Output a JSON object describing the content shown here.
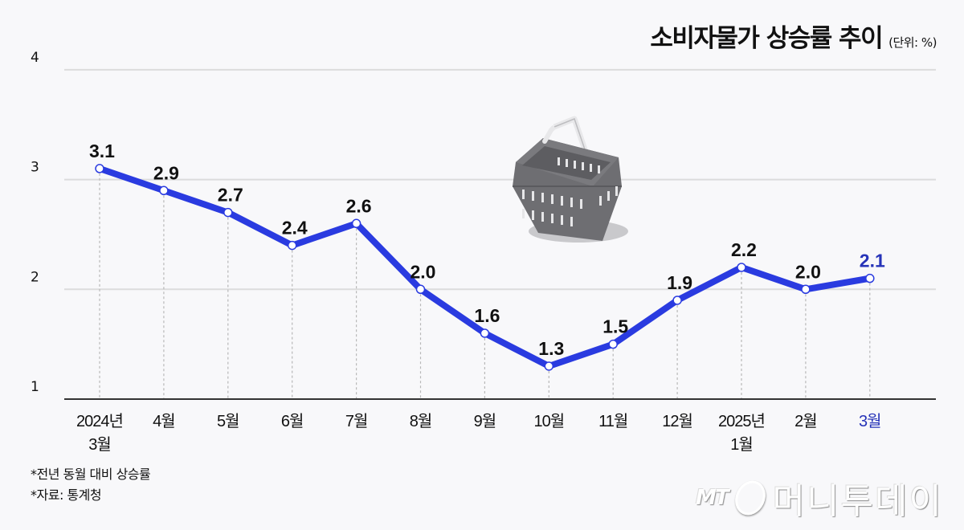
{
  "header": {
    "title": "소비자물가 상승률 추이",
    "unit": "(단위: %)"
  },
  "notes": [
    "*전년 동월 대비 상승률",
    "*자료: 통계청"
  ],
  "logo": {
    "mt": "MT",
    "name": "머니투데이"
  },
  "colors": {
    "line": "#2a3be0",
    "highlight_label": "#2633b8",
    "text": "#111111",
    "grid": "#dcdcdc",
    "axis": "#333333",
    "background": "#f8f8fa"
  },
  "chart_data": {
    "type": "line",
    "title": "소비자물가 상승률 추이",
    "subtitle": "(단위: %)",
    "xlabel": "",
    "ylabel": "%",
    "ylim": [
      1,
      4
    ],
    "yticks": [
      1,
      2,
      3,
      4
    ],
    "grid": true,
    "legend": null,
    "categories": [
      "2024년 3월",
      "4월",
      "5월",
      "6월",
      "7월",
      "8월",
      "9월",
      "10월",
      "11월",
      "12월",
      "2025년 1월",
      "2월",
      "3월"
    ],
    "category_lines": [
      [
        "2024년",
        "3월"
      ],
      [
        "4월"
      ],
      [
        "5월"
      ],
      [
        "6월"
      ],
      [
        "7월"
      ],
      [
        "8월"
      ],
      [
        "9월"
      ],
      [
        "10월"
      ],
      [
        "11월"
      ],
      [
        "12월"
      ],
      [
        "2025년",
        "1월"
      ],
      [
        "2월"
      ],
      [
        "3월"
      ]
    ],
    "series": [
      {
        "name": "소비자물가 상승률",
        "values": [
          3.1,
          2.9,
          2.7,
          2.4,
          2.6,
          2.0,
          1.6,
          1.3,
          1.5,
          1.9,
          2.2,
          2.0,
          2.1
        ],
        "labels": [
          "3.1",
          "2.9",
          "2.7",
          "2.4",
          "2.6",
          "2.0",
          "1.6",
          "1.3",
          "1.5",
          "1.9",
          "2.2",
          "2.0",
          "2.1"
        ]
      }
    ],
    "highlight_index": 12,
    "annotations": [
      "*전년 동월 대비 상승률",
      "*자료: 통계청"
    ]
  }
}
